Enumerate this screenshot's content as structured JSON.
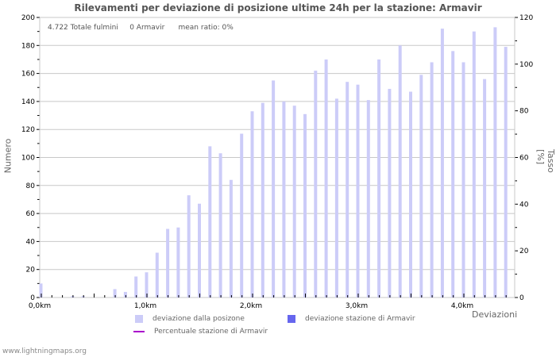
{
  "chart_data": {
    "type": "bar",
    "title": "Rilevamenti per deviazione di posizione ultime 24h per la stazione: Armavir",
    "xlabel": "Deviazioni",
    "ylabel": "Numero",
    "ylabel_right": "Tasso [%]",
    "ylim": [
      0,
      200
    ],
    "ylim_right": [
      0,
      120
    ],
    "yticks": [
      0,
      20,
      40,
      60,
      80,
      100,
      120,
      140,
      160,
      180,
      200
    ],
    "yticks_right": [
      0,
      20,
      40,
      60,
      80,
      100,
      120
    ],
    "xtick_labels": [
      "0,0km",
      "1,0km",
      "2,0km",
      "3,0km",
      "4,0km"
    ],
    "grid": true,
    "bin_size_km": 0.1,
    "x": [
      "0.0",
      "0.1",
      "0.2",
      "0.3",
      "0.4",
      "0.5",
      "0.6",
      "0.7",
      "0.8",
      "0.9",
      "1.0",
      "1.1",
      "1.2",
      "1.3",
      "1.4",
      "1.5",
      "1.6",
      "1.7",
      "1.8",
      "1.9",
      "2.0",
      "2.1",
      "2.2",
      "2.3",
      "2.4",
      "2.5",
      "2.6",
      "2.7",
      "2.8",
      "2.9",
      "3.0",
      "3.1",
      "3.2",
      "3.3",
      "3.4",
      "3.5",
      "3.6",
      "3.7",
      "3.8",
      "3.9",
      "4.0",
      "4.1",
      "4.2",
      "4.3",
      "4.4"
    ],
    "series": [
      {
        "name": "deviazione dalla posizone",
        "color": "#ccccf8",
        "values": [
          10,
          0,
          0,
          1,
          1,
          0,
          0,
          6,
          4,
          15,
          18,
          32,
          49,
          50,
          73,
          67,
          108,
          103,
          84,
          117,
          133,
          139,
          155,
          140,
          137,
          131,
          162,
          170,
          142,
          154,
          152,
          141,
          170,
          149,
          180,
          147,
          159,
          168,
          192,
          176,
          168,
          190,
          156,
          193,
          179
        ]
      },
      {
        "name": "deviazione stazione di Armavir",
        "color": "#6666ee",
        "values": [
          0,
          0,
          0,
          0,
          0,
          0,
          0,
          0,
          0,
          0,
          0,
          0,
          0,
          0,
          0,
          0,
          0,
          0,
          0,
          0,
          0,
          0,
          0,
          0,
          0,
          0,
          0,
          0,
          0,
          0,
          0,
          0,
          0,
          0,
          0,
          0,
          0,
          0,
          0,
          0,
          0,
          0,
          0,
          0,
          0
        ]
      },
      {
        "name": "Percentuale stazione di Armavir",
        "color": "#aa00cc",
        "type": "line",
        "values": []
      }
    ]
  },
  "info": {
    "total": "4.722 Totale fulmini",
    "station": "0 Armavir",
    "ratio": "mean ratio: 0%"
  },
  "legend": {
    "item1": "deviazione dalla posizone",
    "item2": "deviazione stazione di Armavir",
    "item3": "Percentuale stazione di Armavir"
  },
  "footer": "www.lightningmaps.org"
}
